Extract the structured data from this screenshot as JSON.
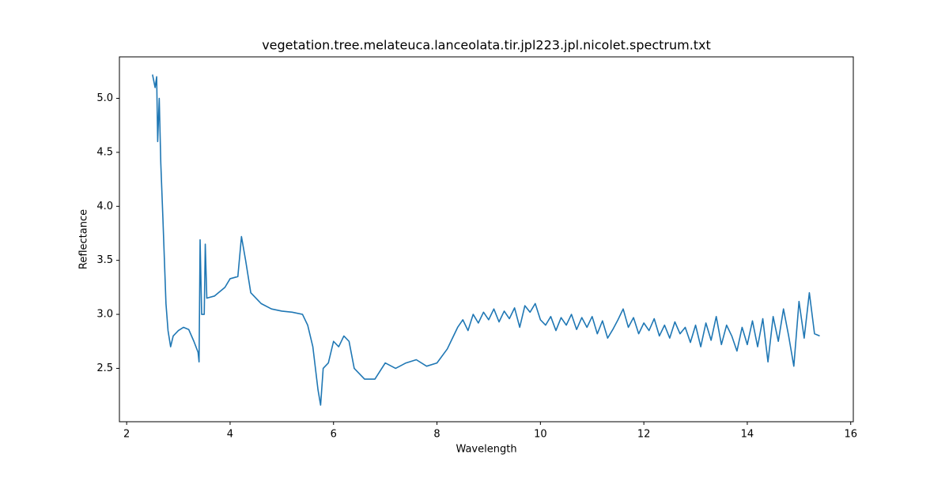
{
  "chart_data": {
    "type": "line",
    "title": "vegetation.tree.melateuca.lanceolata.tir.jpl223.jpl.nicolet.spectrum.txt",
    "x_label": "Wavelength",
    "y_label": "Reflectance",
    "x": [
      2.5,
      2.55,
      2.58,
      2.6,
      2.63,
      2.66,
      2.7,
      2.73,
      2.76,
      2.8,
      2.85,
      2.9,
      3.0,
      3.1,
      3.2,
      3.3,
      3.38,
      3.4,
      3.42,
      3.45,
      3.5,
      3.52,
      3.55,
      3.7,
      3.9,
      4.0,
      4.15,
      4.22,
      4.3,
      4.4,
      4.6,
      4.8,
      5.0,
      5.2,
      5.4,
      5.5,
      5.6,
      5.7,
      5.75,
      5.8,
      5.9,
      6.0,
      6.1,
      6.2,
      6.3,
      6.4,
      6.6,
      6.8,
      7.0,
      7.2,
      7.4,
      7.6,
      7.8,
      8.0,
      8.2,
      8.3,
      8.4,
      8.5,
      8.6,
      8.7,
      8.8,
      8.9,
      9.0,
      9.1,
      9.2,
      9.3,
      9.4,
      9.5,
      9.6,
      9.7,
      9.8,
      9.9,
      10.0,
      10.1,
      10.2,
      10.3,
      10.4,
      10.5,
      10.6,
      10.7,
      10.8,
      10.9,
      11.0,
      11.1,
      11.2,
      11.3,
      11.4,
      11.5,
      11.6,
      11.7,
      11.8,
      11.9,
      12.0,
      12.1,
      12.2,
      12.3,
      12.4,
      12.5,
      12.6,
      12.7,
      12.8,
      12.9,
      13.0,
      13.1,
      13.2,
      13.3,
      13.4,
      13.5,
      13.6,
      13.7,
      13.8,
      13.9,
      14.0,
      14.1,
      14.2,
      14.3,
      14.4,
      14.5,
      14.6,
      14.7,
      14.8,
      14.9,
      15.0,
      15.1,
      15.2,
      15.3,
      15.4
    ],
    "series": [
      {
        "name": "spectrum",
        "color": "#1f77b4",
        "values": [
          5.22,
          5.1,
          5.2,
          4.6,
          5.0,
          4.4,
          3.9,
          3.5,
          3.1,
          2.85,
          2.7,
          2.8,
          2.85,
          2.88,
          2.86,
          2.75,
          2.65,
          2.56,
          3.69,
          3.0,
          3.0,
          3.65,
          3.15,
          3.17,
          3.25,
          3.33,
          3.35,
          3.72,
          3.5,
          3.2,
          3.1,
          3.05,
          3.03,
          3.02,
          3.0,
          2.9,
          2.7,
          2.3,
          2.16,
          2.5,
          2.55,
          2.75,
          2.7,
          2.8,
          2.75,
          2.5,
          2.4,
          2.4,
          2.55,
          2.5,
          2.55,
          2.58,
          2.52,
          2.55,
          2.68,
          2.78,
          2.88,
          2.95,
          2.85,
          3.0,
          2.92,
          3.02,
          2.95,
          3.05,
          2.93,
          3.03,
          2.96,
          3.06,
          2.88,
          3.08,
          3.02,
          3.1,
          2.95,
          2.9,
          2.98,
          2.85,
          2.97,
          2.9,
          3.0,
          2.86,
          2.97,
          2.88,
          2.98,
          2.82,
          2.94,
          2.78,
          2.86,
          2.95,
          3.05,
          2.88,
          2.97,
          2.82,
          2.92,
          2.85,
          2.96,
          2.8,
          2.9,
          2.78,
          2.93,
          2.82,
          2.88,
          2.74,
          2.9,
          2.7,
          2.92,
          2.76,
          2.98,
          2.72,
          2.9,
          2.8,
          2.66,
          2.88,
          2.72,
          2.94,
          2.7,
          2.96,
          2.56,
          2.98,
          2.75,
          3.05,
          2.8,
          2.52,
          3.12,
          2.78,
          3.2,
          2.82,
          2.8
        ]
      }
    ],
    "xlim": [
      1.86,
      16.05
    ],
    "ylim": [
      2.006,
      5.384
    ],
    "xticks": [
      2,
      4,
      6,
      8,
      10,
      12,
      14,
      16
    ],
    "yticks": [
      2.5,
      {
        "value": 3,
        "label": "3.0"
      },
      3.5,
      {
        "value": 4,
        "label": "4.0"
      },
      4.5,
      {
        "value": 5,
        "label": "5.0"
      }
    ]
  }
}
